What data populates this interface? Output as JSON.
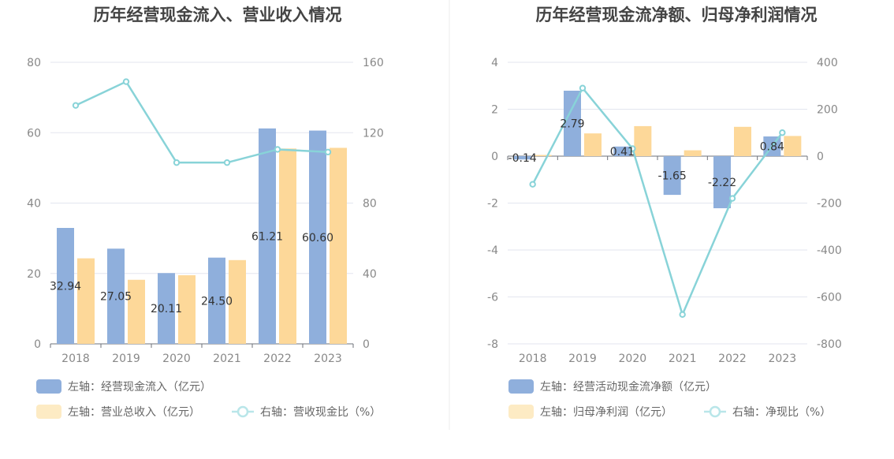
{
  "chart_data": [
    {
      "type": "bar",
      "title": "历年经营现金流入、营业收入情况",
      "categories": [
        "2018",
        "2019",
        "2020",
        "2021",
        "2022",
        "2023"
      ],
      "y_left_lim": [
        0,
        80
      ],
      "y_left_ticks": [
        0,
        20,
        40,
        60,
        80
      ],
      "y_right_lim": [
        0,
        160
      ],
      "y_right_ticks": [
        0,
        40,
        80,
        120,
        160
      ],
      "grid": true,
      "legend_position": "bottom",
      "series": [
        {
          "name": "左轴：经营现金流入（亿元）",
          "kind": "bar",
          "axis": "left",
          "color": "#8fafdc",
          "values": [
            32.94,
            27.05,
            20.11,
            24.5,
            61.21,
            60.6
          ],
          "labels": [
            "32.94",
            "27.05",
            "20.11",
            "24.50",
            "61.21",
            "60.60"
          ]
        },
        {
          "name": "左轴：营业总收入（亿元）",
          "kind": "bar",
          "axis": "left",
          "color": "#fdd899",
          "values": [
            24.3,
            18.2,
            19.5,
            23.8,
            55.5,
            55.7
          ]
        },
        {
          "name": "右轴：营收现金比（%）",
          "kind": "line",
          "axis": "right",
          "color": "#88d3d8",
          "values": [
            135.5,
            149,
            103,
            103,
            110.5,
            109
          ]
        }
      ]
    },
    {
      "type": "bar",
      "title": "历年经营现金流净额、归母净利润情况",
      "categories": [
        "2018",
        "2019",
        "2020",
        "2021",
        "2022",
        "2023"
      ],
      "y_left_lim": [
        -8,
        4
      ],
      "y_left_ticks": [
        -8,
        -6,
        -4,
        -2,
        0,
        2,
        4
      ],
      "y_right_lim": [
        -800,
        400
      ],
      "y_right_ticks": [
        -800,
        -600,
        -400,
        -200,
        0,
        200,
        400
      ],
      "grid": true,
      "legend_position": "bottom",
      "series": [
        {
          "name": "左轴：经营活动现金流净额（亿元）",
          "kind": "bar",
          "axis": "left",
          "color": "#8fafdc",
          "values": [
            -0.14,
            2.79,
            0.41,
            -1.65,
            -2.22,
            0.84
          ],
          "labels": [
            "-0.14",
            "2.79",
            "0.41",
            "-1.65",
            "-2.22",
            "0.84"
          ]
        },
        {
          "name": "左轴：归母净利润（亿元）",
          "kind": "bar",
          "axis": "left",
          "color": "#fdd899",
          "values": [
            0.05,
            0.97,
            1.28,
            0.25,
            1.25,
            0.86
          ]
        },
        {
          "name": "右轴：净现比（%）",
          "kind": "line",
          "axis": "right",
          "color": "#88d3d8",
          "values": [
            -120,
            290,
            32,
            -675,
            -180,
            100
          ]
        }
      ]
    }
  ]
}
